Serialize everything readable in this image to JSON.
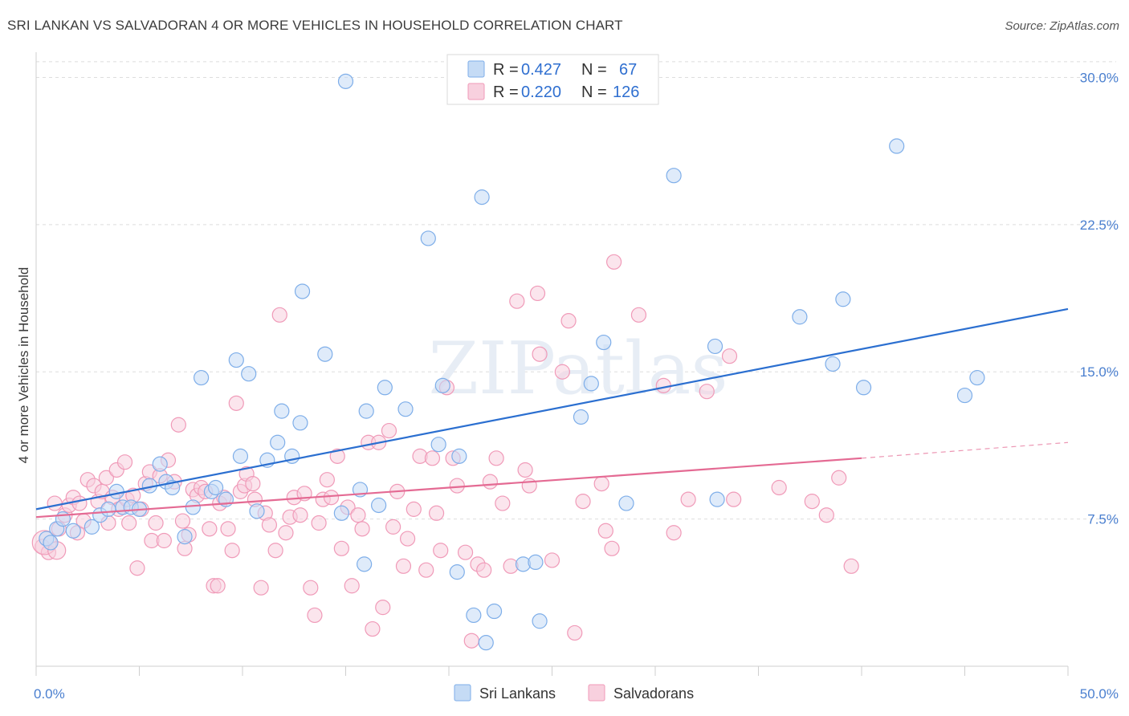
{
  "title": "SRI LANKAN VS SALVADORAN 4 OR MORE VEHICLES IN HOUSEHOLD CORRELATION CHART",
  "source": "Source: ZipAtlas.com",
  "watermark": "ZIPatlas",
  "colors": {
    "blue": "#7eaee9",
    "blue_fill": "#c5dbf5",
    "blue_line": "#2b6fd0",
    "pink": "#f09ab8",
    "pink_fill": "#f8d0de",
    "pink_line": "#e46a93",
    "tick": "#4a7fcf"
  },
  "legend": {
    "rows": [
      {
        "r_label": "R =",
        "r_value": "0.427",
        "n_label": "N =",
        "n_value": "67"
      },
      {
        "r_label": "R =",
        "r_value": "0.220",
        "n_label": "N =",
        "n_value": "126"
      }
    ]
  },
  "bottom_legend": [
    "Sri Lankans",
    "Salvadorans"
  ],
  "chart_data": {
    "type": "scatter",
    "title": "SRI LANKAN VS SALVADORAN 4 OR MORE VEHICLES IN HOUSEHOLD CORRELATION CHART",
    "xlabel": "",
    "ylabel": "4 or more Vehicles in Household",
    "xlim": [
      0,
      50
    ],
    "ylim": [
      0,
      31
    ],
    "x_tick_labels": [
      "0.0%",
      "50.0%"
    ],
    "y_ticks": [
      7.5,
      15.0,
      22.5,
      30.0
    ],
    "y_tick_labels": [
      "7.5%",
      "15.0%",
      "22.5%",
      "30.0%"
    ],
    "grid": true,
    "series": [
      {
        "name": "Sri Lankans",
        "r": 0.427,
        "n": 67,
        "trend": {
          "x": [
            0,
            50
          ],
          "y": [
            8.0,
            18.2
          ]
        },
        "points": [
          [
            0.5,
            6.5
          ],
          [
            0.7,
            6.3
          ],
          [
            1.0,
            7.0
          ],
          [
            1.3,
            7.5
          ],
          [
            1.8,
            6.9
          ],
          [
            2.7,
            7.1
          ],
          [
            3.1,
            7.7
          ],
          [
            3.5,
            8.0
          ],
          [
            3.9,
            8.9
          ],
          [
            4.2,
            8.1
          ],
          [
            4.6,
            8.1
          ],
          [
            5.0,
            8.0
          ],
          [
            5.5,
            9.2
          ],
          [
            6.0,
            10.3
          ],
          [
            6.3,
            9.4
          ],
          [
            6.6,
            9.1
          ],
          [
            7.2,
            6.6
          ],
          [
            7.6,
            8.1
          ],
          [
            8.0,
            14.7
          ],
          [
            8.5,
            8.9
          ],
          [
            8.7,
            9.1
          ],
          [
            9.2,
            8.5
          ],
          [
            9.7,
            15.6
          ],
          [
            9.9,
            10.7
          ],
          [
            10.3,
            14.9
          ],
          [
            10.7,
            7.9
          ],
          [
            11.2,
            10.5
          ],
          [
            11.7,
            11.4
          ],
          [
            11.9,
            13.0
          ],
          [
            12.4,
            10.7
          ],
          [
            12.8,
            12.4
          ],
          [
            12.9,
            19.1
          ],
          [
            14.0,
            15.9
          ],
          [
            14.8,
            7.8
          ],
          [
            15.0,
            29.8
          ],
          [
            15.7,
            9.0
          ],
          [
            15.9,
            5.2
          ],
          [
            16.0,
            13.0
          ],
          [
            16.6,
            8.2
          ],
          [
            16.9,
            14.2
          ],
          [
            17.9,
            13.1
          ],
          [
            19.0,
            21.8
          ],
          [
            19.5,
            11.3
          ],
          [
            19.7,
            14.3
          ],
          [
            20.4,
            4.8
          ],
          [
            20.5,
            10.7
          ],
          [
            21.2,
            2.6
          ],
          [
            21.6,
            23.9
          ],
          [
            21.8,
            1.2
          ],
          [
            22.2,
            2.8
          ],
          [
            23.6,
            5.2
          ],
          [
            24.2,
            5.3
          ],
          [
            24.4,
            2.3
          ],
          [
            26.4,
            12.7
          ],
          [
            26.9,
            14.4
          ],
          [
            27.5,
            16.5
          ],
          [
            28.6,
            8.3
          ],
          [
            30.9,
            25.0
          ],
          [
            32.9,
            16.3
          ],
          [
            33.0,
            8.5
          ],
          [
            37.0,
            17.8
          ],
          [
            38.6,
            15.4
          ],
          [
            39.1,
            18.7
          ],
          [
            40.1,
            14.2
          ],
          [
            41.7,
            26.5
          ],
          [
            45.0,
            13.8
          ],
          [
            45.6,
            14.7
          ]
        ]
      },
      {
        "name": "Salvadorans",
        "r": 0.22,
        "n": 126,
        "trend": {
          "x": [
            0,
            40
          ],
          "y": [
            7.6,
            10.6
          ]
        },
        "trend_dashed": {
          "x": [
            40,
            50
          ],
          "y": [
            10.6,
            11.4
          ]
        },
        "points": [
          [
            0.3,
            6.1
          ],
          [
            0.6,
            5.8
          ],
          [
            0.9,
            8.3
          ],
          [
            1.1,
            7.0
          ],
          [
            1.4,
            7.7
          ],
          [
            1.6,
            8.2
          ],
          [
            1.8,
            8.6
          ],
          [
            2.0,
            6.8
          ],
          [
            2.1,
            8.3
          ],
          [
            2.3,
            7.4
          ],
          [
            2.5,
            9.5
          ],
          [
            2.8,
            9.2
          ],
          [
            3.0,
            8.4
          ],
          [
            3.2,
            8.9
          ],
          [
            3.4,
            9.6
          ],
          [
            3.5,
            7.3
          ],
          [
            3.7,
            8.6
          ],
          [
            3.9,
            10.0
          ],
          [
            4.0,
            8.0
          ],
          [
            4.3,
            10.4
          ],
          [
            4.4,
            8.5
          ],
          [
            4.5,
            7.3
          ],
          [
            4.7,
            8.7
          ],
          [
            4.9,
            5.0
          ],
          [
            5.1,
            8.0
          ],
          [
            5.3,
            9.3
          ],
          [
            5.5,
            9.9
          ],
          [
            5.6,
            6.4
          ],
          [
            5.8,
            7.3
          ],
          [
            6.0,
            9.7
          ],
          [
            6.2,
            6.4
          ],
          [
            6.4,
            10.5
          ],
          [
            6.7,
            9.4
          ],
          [
            6.9,
            12.3
          ],
          [
            7.1,
            7.4
          ],
          [
            7.2,
            6.0
          ],
          [
            7.4,
            6.7
          ],
          [
            7.6,
            9.0
          ],
          [
            7.8,
            8.7
          ],
          [
            8.0,
            9.1
          ],
          [
            8.2,
            8.9
          ],
          [
            8.4,
            7.0
          ],
          [
            8.6,
            4.1
          ],
          [
            8.8,
            4.1
          ],
          [
            8.9,
            8.3
          ],
          [
            9.1,
            8.6
          ],
          [
            9.3,
            7.0
          ],
          [
            9.5,
            5.9
          ],
          [
            9.7,
            13.4
          ],
          [
            9.9,
            8.9
          ],
          [
            10.1,
            9.2
          ],
          [
            10.2,
            9.8
          ],
          [
            10.5,
            9.3
          ],
          [
            10.6,
            8.5
          ],
          [
            10.9,
            4.0
          ],
          [
            11.1,
            7.8
          ],
          [
            11.3,
            7.2
          ],
          [
            11.6,
            5.9
          ],
          [
            11.8,
            17.9
          ],
          [
            12.1,
            6.8
          ],
          [
            12.3,
            7.6
          ],
          [
            12.5,
            8.6
          ],
          [
            12.8,
            7.7
          ],
          [
            13.0,
            8.8
          ],
          [
            13.3,
            4.0
          ],
          [
            13.5,
            2.6
          ],
          [
            13.7,
            7.3
          ],
          [
            13.9,
            8.5
          ],
          [
            14.1,
            9.5
          ],
          [
            14.3,
            8.6
          ],
          [
            14.6,
            10.7
          ],
          [
            14.8,
            6.0
          ],
          [
            15.1,
            8.1
          ],
          [
            15.3,
            4.1
          ],
          [
            15.6,
            7.7
          ],
          [
            15.8,
            7.0
          ],
          [
            16.1,
            11.4
          ],
          [
            16.3,
            1.9
          ],
          [
            16.6,
            11.4
          ],
          [
            16.8,
            3.0
          ],
          [
            17.1,
            12.0
          ],
          [
            17.3,
            7.1
          ],
          [
            17.5,
            8.9
          ],
          [
            17.8,
            5.1
          ],
          [
            18.0,
            6.5
          ],
          [
            18.3,
            8.0
          ],
          [
            18.6,
            10.7
          ],
          [
            18.9,
            4.9
          ],
          [
            19.2,
            10.6
          ],
          [
            19.4,
            7.8
          ],
          [
            19.6,
            5.9
          ],
          [
            19.9,
            14.2
          ],
          [
            20.2,
            10.6
          ],
          [
            20.4,
            9.2
          ],
          [
            20.8,
            5.8
          ],
          [
            21.1,
            1.3
          ],
          [
            21.4,
            5.2
          ],
          [
            21.7,
            4.9
          ],
          [
            22.0,
            9.4
          ],
          [
            22.3,
            10.6
          ],
          [
            22.6,
            8.3
          ],
          [
            23.0,
            5.1
          ],
          [
            23.3,
            18.6
          ],
          [
            23.7,
            10.0
          ],
          [
            23.9,
            9.2
          ],
          [
            24.3,
            19.0
          ],
          [
            24.4,
            15.9
          ],
          [
            25.0,
            5.4
          ],
          [
            25.5,
            15.0
          ],
          [
            25.8,
            17.6
          ],
          [
            26.1,
            1.7
          ],
          [
            26.5,
            8.4
          ],
          [
            27.4,
            9.3
          ],
          [
            27.6,
            6.9
          ],
          [
            27.9,
            6.0
          ],
          [
            28.0,
            20.6
          ],
          [
            29.2,
            17.9
          ],
          [
            30.4,
            14.3
          ],
          [
            30.9,
            6.8
          ],
          [
            31.6,
            8.5
          ],
          [
            32.5,
            14.0
          ],
          [
            33.6,
            15.8
          ],
          [
            33.8,
            8.5
          ],
          [
            36.0,
            9.1
          ],
          [
            37.6,
            8.4
          ],
          [
            38.3,
            7.7
          ],
          [
            38.9,
            9.6
          ],
          [
            39.5,
            5.1
          ]
        ]
      }
    ]
  }
}
